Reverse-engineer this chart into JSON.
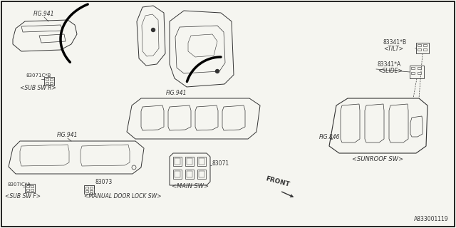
{
  "background_color": "#f5f5f0",
  "border_color": "#000000",
  "line_color": "#333333",
  "text_color": "#333333",
  "diagram_id": "A833001119",
  "labels": {
    "fig941_top": "FIG.941",
    "fig941_mid": "FIG.941",
    "fig941_bot": "FIG.941",
    "fig846": "FIG.846",
    "part_83071C_B": "83071C*B",
    "part_83071C_A": "8307IC*A",
    "part_83071": "83071",
    "part_83073": "83073",
    "part_83341B": "83341*B",
    "part_83341A": "83341*A",
    "sub_sw_r": "<SUB SW R>",
    "sub_sw_f": "<SUB SW F>",
    "main_sw": "<MAIN SW>",
    "manual_lock": "<MANUAL DOOR LOCK SW>",
    "sunroof_sw": "<SUNROOF SW>",
    "tilt": "<TILT>",
    "slide": "<SLIDE>",
    "front": "FRONT"
  }
}
